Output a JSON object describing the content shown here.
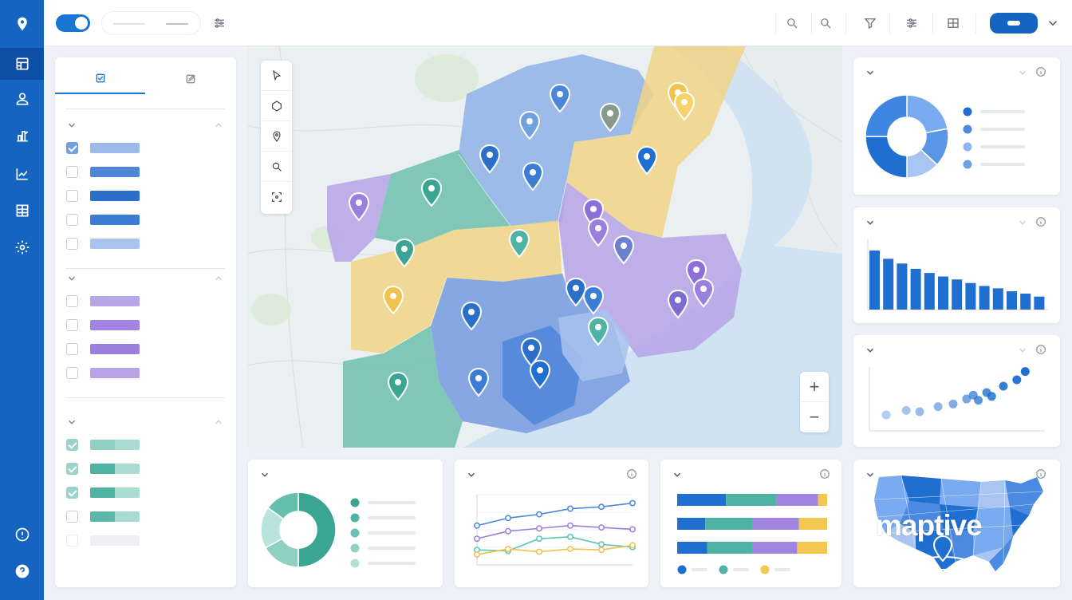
{
  "app": {
    "brand_logo_text": "maptive",
    "colors": {
      "rail": "#1565c0",
      "primary": "#1976d2",
      "region_blue": "#8fb2e6",
      "region_teal": "#6dbfae",
      "region_yellow": "#f1d486",
      "region_purple": "#b7a3e6",
      "chart_blue": "#1e6fd0",
      "chart_teal": "#4fb3a3"
    }
  },
  "sidebar": {
    "icons": [
      "location-pin-icon",
      "dashboard-grid-icon",
      "user-group-icon",
      "territory-icon",
      "analytics-icon",
      "table-icon",
      "settings-gear-icon",
      "info-icon",
      "help-icon"
    ]
  },
  "toolbar": {
    "icons": [
      "sliders-icon",
      "search-icon",
      "zoom-search-icon",
      "filter-icon",
      "settings-sliders-icon",
      "grid-icon",
      "chevron-down-icon"
    ],
    "toggle_on": true
  },
  "layers_panel": {
    "tabs": [
      "layers-tab-icon",
      "edit-tab-icon"
    ],
    "groups": [
      {
        "name": "blue-group",
        "items": [
          {
            "checked": true,
            "color": "#9cbbea"
          },
          {
            "checked": false,
            "color": "#4d87d6"
          },
          {
            "checked": false,
            "color": "#2c6fc9"
          },
          {
            "checked": false,
            "color": "#3b7dd4"
          },
          {
            "checked": false,
            "color": "#a9c4ef"
          }
        ]
      },
      {
        "name": "purple-group",
        "items": [
          {
            "checked": false,
            "color": "#b9a6e8"
          },
          {
            "checked": false,
            "color": "#a184e0"
          },
          {
            "checked": false,
            "color": "#9b7fdc"
          },
          {
            "checked": false,
            "color": "#b8a3e6"
          }
        ]
      },
      {
        "name": "teal-group",
        "items": [
          {
            "checked": true,
            "color": "#8fd0c3"
          },
          {
            "checked": true,
            "color": "#4fb3a3"
          },
          {
            "checked": true,
            "color": "#4fb3a3"
          },
          {
            "checked": false,
            "color": "#5bb8a9"
          },
          {
            "checked": false,
            "color": "#eef0f3"
          }
        ]
      }
    ]
  },
  "map": {
    "tools": [
      "select-arrow-icon",
      "polygon-icon",
      "pin-tool-icon",
      "search-tool-icon",
      "fit-bounds-icon"
    ],
    "zoom_in": "+",
    "zoom_out": "−"
  },
  "widgets": {
    "donut_blue": {
      "segments": [
        0.22,
        0.15,
        0.13,
        0.25,
        0.25
      ],
      "colors": [
        "#7aaaf0",
        "#5b95e6",
        "#a9c6f3",
        "#1e6fd0",
        "#3f86e2"
      ],
      "legend_colors": [
        "#1e6fd0",
        "#4a8ae0",
        "#8db5ef",
        "#6e9fe8"
      ]
    },
    "bars_blue": {
      "values": [
        100,
        86,
        78,
        69,
        62,
        56,
        51,
        45,
        40,
        36,
        31,
        27,
        22
      ]
    },
    "scatter_blue": {
      "points": [
        [
          1,
          2.5
        ],
        [
          2.2,
          3.2
        ],
        [
          3,
          3
        ],
        [
          4.1,
          3.8
        ],
        [
          5,
          4.2
        ],
        [
          5.8,
          5
        ],
        [
          6.2,
          5.6
        ],
        [
          6.5,
          4.8
        ],
        [
          7,
          6
        ],
        [
          7.3,
          5.4
        ],
        [
          8,
          7
        ],
        [
          8.8,
          8
        ],
        [
          9.3,
          9.3
        ]
      ]
    },
    "donut_teal": {
      "segments": [
        0.5,
        0.17,
        0.18,
        0.15
      ],
      "colors": [
        "#3aa592",
        "#8fd0c3",
        "#b9e3db",
        "#66bfae"
      ],
      "legend_colors": [
        "#3aa592",
        "#4fb3a3",
        "#6cc2b2",
        "#8fd0c3",
        "#b2e0d7"
      ]
    },
    "line_chart": {
      "series": [
        {
          "color": "#4a86d9",
          "values": [
            4.2,
            5.0,
            5.4,
            6.0,
            6.2,
            6.6
          ]
        },
        {
          "color": "#9b7fdc",
          "values": [
            2.8,
            3.6,
            3.9,
            4.2,
            4.0,
            3.8
          ]
        },
        {
          "color": "#5fc4b2",
          "values": [
            1.6,
            1.5,
            2.8,
            3.0,
            2.2,
            1.9
          ]
        },
        {
          "color": "#f0c24e",
          "values": [
            1.1,
            1.7,
            1.4,
            1.7,
            1.6,
            2.1
          ]
        }
      ]
    },
    "stacked_bars": {
      "rows": [
        [
          0.27,
          0.28,
          0.23,
          0.05
        ],
        [
          0.18,
          0.3,
          0.3,
          0.18
        ],
        [
          0.18,
          0.27,
          0.27,
          0.18
        ]
      ],
      "colors": [
        "#1e6fd0",
        "#4fb3a3",
        "#a184e0",
        "#f3c752"
      ],
      "legend_colors": [
        "#1e6fd0",
        "#4fb3a3",
        "#f3c752"
      ]
    },
    "us_map": {
      "colors": [
        "#1e6fd0",
        "#4a8ae0",
        "#7aaaf0",
        "#a9c6f3"
      ]
    }
  }
}
